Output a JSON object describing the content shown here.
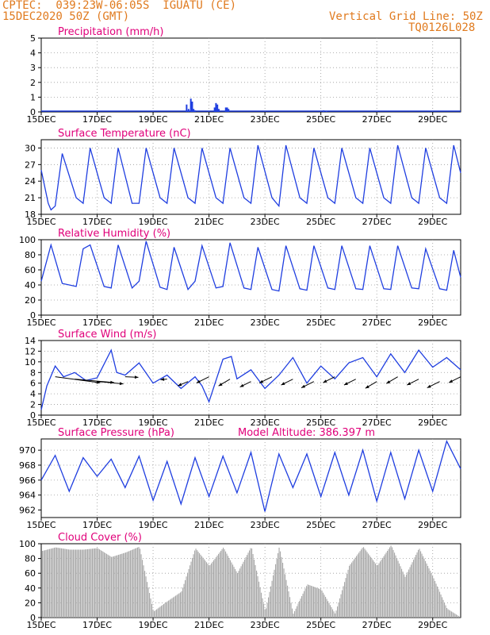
{
  "header": {
    "line1": "CPTEC:  039:23W-06:05S  IGUATU (CE)",
    "line2": "15DEC2020 50Z (GMT)",
    "grid_note": "Vertical Grid Line: 50Z",
    "code": "TQ0126L028"
  },
  "colors": {
    "header": "#e07a1e",
    "title": "#e0007a",
    "line": "#1f3ee0",
    "bars": "#aaaaaa",
    "arrows": "#000000",
    "grid": "#999999"
  },
  "x_axis": {
    "ticks": [
      "15DEC",
      "17DEC",
      "19DEC",
      "21DEC",
      "23DEC",
      "25DEC",
      "27DEC",
      "29DEC"
    ],
    "tick_days": [
      0,
      2,
      4,
      6,
      8,
      10,
      12,
      14
    ],
    "range_days": [
      0,
      15
    ]
  },
  "chart_data": [
    {
      "id": "precip",
      "type": "bar",
      "title": "Precipitation (mm/h)",
      "ylim": [
        0,
        5
      ],
      "yticks": [
        "0",
        "1",
        "2",
        "3",
        "4",
        "5"
      ],
      "x_days": [
        5.2,
        5.27,
        5.35,
        5.4,
        5.45,
        5.5,
        6.2,
        6.25,
        6.3,
        6.35,
        6.6,
        6.65,
        6.7,
        10.1,
        10.2
      ],
      "values": [
        0.5,
        0.2,
        0.9,
        0.7,
        0.2,
        0.1,
        0.3,
        0.6,
        0.5,
        0.2,
        0.3,
        0.3,
        0.2,
        0.1,
        0.05
      ]
    },
    {
      "id": "temp",
      "type": "line",
      "title": "Surface Temperature (nC)",
      "ylim": [
        18,
        31.5
      ],
      "yticks": [
        "18",
        "21",
        "24",
        "27",
        "30"
      ],
      "x_days": [
        0,
        0.25,
        0.35,
        0.5,
        0.75,
        1.25,
        1.5,
        1.75,
        2.25,
        2.5,
        2.75,
        3.25,
        3.5,
        3.75,
        4.25,
        4.5,
        4.75,
        5.25,
        5.5,
        5.75,
        6.25,
        6.5,
        6.75,
        7.25,
        7.5,
        7.75,
        8.25,
        8.5,
        8.75,
        9.25,
        9.5,
        9.75,
        10.25,
        10.5,
        10.75,
        11.25,
        11.5,
        11.75,
        12.25,
        12.5,
        12.75,
        13.25,
        13.5,
        13.75,
        14.25,
        14.5,
        14.75,
        15
      ],
      "values": [
        26,
        20,
        18.8,
        19.5,
        29,
        21,
        20,
        30,
        21,
        20,
        30,
        20,
        20,
        30,
        21,
        20,
        30,
        21,
        20,
        30,
        21,
        20,
        30,
        21,
        20,
        30.5,
        21,
        19.5,
        30.5,
        21,
        20,
        30,
        21,
        20,
        30,
        21,
        20,
        30,
        21,
        20,
        30.5,
        21,
        20,
        30,
        21,
        20,
        30.5,
        25.5
      ]
    },
    {
      "id": "rh",
      "type": "line",
      "title": "Relative Humidity (%)",
      "ylim": [
        0,
        100
      ],
      "yticks": [
        "0",
        "20",
        "40",
        "60",
        "80",
        "100"
      ],
      "x_days": [
        0,
        0.35,
        0.75,
        1.25,
        1.5,
        1.75,
        2.25,
        2.5,
        2.75,
        3.25,
        3.5,
        3.75,
        4.25,
        4.5,
        4.75,
        5.25,
        5.5,
        5.75,
        6.25,
        6.5,
        6.75,
        7.25,
        7.5,
        7.75,
        8.25,
        8.5,
        8.75,
        9.25,
        9.5,
        9.75,
        10.25,
        10.5,
        10.75,
        11.25,
        11.5,
        11.75,
        12.25,
        12.5,
        12.75,
        13.25,
        13.5,
        13.75,
        14.25,
        14.5,
        14.75,
        15
      ],
      "values": [
        45,
        93,
        42,
        38,
        88,
        93,
        38,
        36,
        93,
        36,
        45,
        98,
        37,
        34,
        90,
        34,
        45,
        92,
        36,
        38,
        96,
        36,
        34,
        90,
        34,
        32,
        92,
        35,
        33,
        92,
        36,
        34,
        92,
        35,
        34,
        92,
        35,
        34,
        92,
        36,
        35,
        88,
        35,
        33,
        86,
        50
      ]
    },
    {
      "id": "wind",
      "type": "line",
      "title": "Surface Wind (m/s)",
      "ylim": [
        0,
        14
      ],
      "yticks": [
        "0",
        "2",
        "4",
        "6",
        "8",
        "10",
        "12",
        "14"
      ],
      "x_days": [
        0,
        0.2,
        0.5,
        0.8,
        1.2,
        1.6,
        2,
        2.5,
        2.7,
        3,
        3.5,
        4,
        4.5,
        5,
        5.5,
        5.75,
        6,
        6.5,
        6.8,
        7,
        7.5,
        8,
        8.5,
        9,
        9.5,
        10,
        10.5,
        11,
        11.5,
        12,
        12.5,
        13,
        13.5,
        14,
        14.5,
        15
      ],
      "values": [
        1,
        5.5,
        9.2,
        7.2,
        8,
        6.5,
        7,
        12.2,
        8,
        7.5,
        9.8,
        6,
        7.5,
        5,
        7.2,
        5.5,
        2.5,
        10.5,
        11,
        6.8,
        8.5,
        5,
        7.5,
        10.8,
        6,
        9.2,
        6.8,
        9.8,
        10.8,
        7.2,
        11.5,
        8,
        12.2,
        9,
        10.8,
        8.5
      ],
      "arrows_days": [
        0.5,
        1.2,
        2,
        3,
        4.5,
        5.25,
        6,
        6.75,
        7.5,
        8.25,
        9,
        9.75,
        10.5,
        11.25,
        12,
        12.75,
        13.5,
        14.25,
        15
      ],
      "arrows_len": [
        4.2,
        3.6,
        2.4,
        1.2,
        -0.6,
        -1.2,
        -1.6,
        -1.6,
        -1.4,
        -1.6,
        -1.5,
        -1.6,
        -1.5,
        -1.5,
        -1.6,
        -1.6,
        -1.5,
        -1.6,
        -1.5
      ],
      "arrows_dir_deg": [
        15,
        10,
        10,
        5,
        10,
        40,
        45,
        50,
        45,
        45,
        45,
        45,
        45,
        45,
        50,
        50,
        45,
        45,
        45
      ]
    },
    {
      "id": "pres",
      "type": "line",
      "title": "Surface Pressure (hPa)",
      "subtitle": "Model Altitude: 386.397 m",
      "ylim": [
        961,
        971.5
      ],
      "yticks": [
        "962",
        "964",
        "966",
        "968",
        "970"
      ],
      "x_days": [
        0,
        0.5,
        1,
        1.5,
        2,
        2.5,
        3,
        3.5,
        4,
        4.5,
        5,
        5.5,
        6,
        6.5,
        7,
        7.5,
        8,
        8.5,
        9,
        9.5,
        10,
        10.5,
        11,
        11.5,
        12,
        12.5,
        13,
        13.5,
        14,
        14.5,
        15
      ],
      "values": [
        966,
        969.3,
        964.5,
        969,
        966.5,
        968.8,
        965,
        969.2,
        963.3,
        968.5,
        962.8,
        969,
        963.8,
        969.2,
        964.3,
        969.7,
        961.8,
        969.5,
        965,
        969.5,
        963.8,
        969.7,
        964,
        970,
        963.2,
        969.7,
        963.5,
        970,
        964.5,
        971.2,
        967.5
      ]
    },
    {
      "id": "cloud",
      "type": "area",
      "title": "Cloud Cover (%)",
      "ylim": [
        0,
        100
      ],
      "yticks": [
        "0",
        "20",
        "40",
        "60",
        "80",
        "100"
      ],
      "x_days": [
        0,
        0.5,
        1,
        1.5,
        2,
        2.5,
        3,
        3.5,
        4,
        4.5,
        5,
        5.5,
        6,
        6.5,
        7,
        7.5,
        8,
        8.5,
        9,
        9.5,
        10,
        10.5,
        11,
        11.5,
        12,
        12.5,
        13,
        13.5,
        14,
        14.5,
        15
      ],
      "values": [
        90,
        95,
        92,
        92,
        94,
        82,
        88,
        96,
        8,
        22,
        35,
        94,
        70,
        95,
        60,
        96,
        8,
        96,
        5,
        45,
        38,
        5,
        70,
        96,
        70,
        98,
        55,
        94,
        55,
        12,
        0
      ]
    }
  ]
}
